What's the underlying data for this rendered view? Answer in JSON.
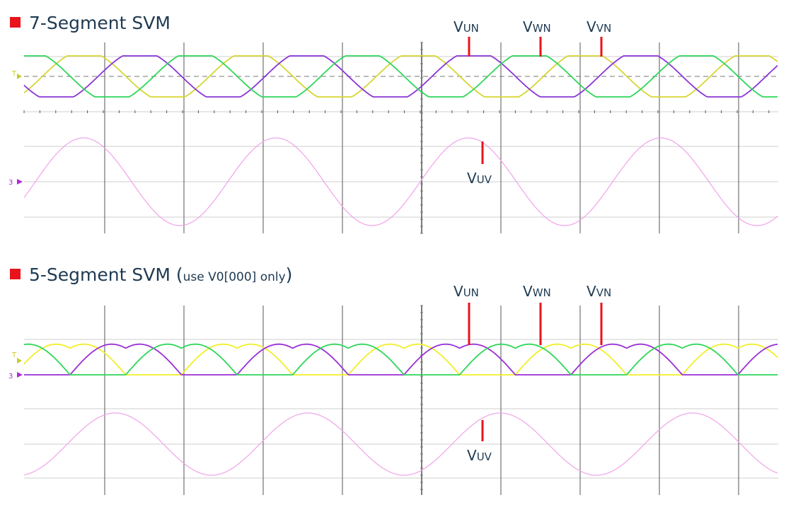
{
  "chart_data": [
    {
      "type": "line",
      "title": "7-Segment SVM",
      "note": "",
      "grid": true,
      "phase_plot": {
        "description_free": true,
        "x_range_cycles": [
          0,
          4.3
        ],
        "series": [
          {
            "name": "VUN",
            "color": "#d6d633",
            "waveform": "clamped-sine"
          },
          {
            "name": "VWN",
            "color": "#8a35d6",
            "waveform": "clamped-sine"
          },
          {
            "name": "VVN",
            "color": "#2fd65a",
            "waveform": "clamped-sine"
          }
        ]
      },
      "line_plot": {
        "series": [
          {
            "name": "VUV",
            "color": "#f0a3ea",
            "waveform": "sine",
            "cycles": 4
          }
        ]
      },
      "labels": [
        {
          "key": "VUN",
          "main": "V",
          "sub": "UN"
        },
        {
          "key": "VWN",
          "main": "V",
          "sub": "WN"
        },
        {
          "key": "VVN",
          "main": "V",
          "sub": "VN"
        },
        {
          "key": "VUV",
          "main": "V",
          "sub": "UV"
        }
      ],
      "markers": {
        "left_top": "T",
        "left_bottom": "3"
      }
    },
    {
      "type": "line",
      "title": "5-Segment SVM",
      "note_open": "(",
      "note": "use V0[000] only",
      "note_close": ")",
      "grid": true,
      "phase_plot": {
        "x_range_cycles": [
          0,
          4.3
        ],
        "series": [
          {
            "name": "VUN",
            "color": "#f2ee2a",
            "waveform": "discontinuous"
          },
          {
            "name": "VWN",
            "color": "#9b2fd6",
            "waveform": "discontinuous"
          },
          {
            "name": "VVN",
            "color": "#2fd65a",
            "waveform": "discontinuous"
          }
        ]
      },
      "line_plot": {
        "series": [
          {
            "name": "VUV",
            "color": "#f0a3ea",
            "waveform": "sine",
            "cycles": 4
          }
        ]
      },
      "labels": [
        {
          "key": "VUN",
          "main": "V",
          "sub": "UN"
        },
        {
          "key": "VWN",
          "main": "V",
          "sub": "WN"
        },
        {
          "key": "VVN",
          "main": "V",
          "sub": "VN"
        },
        {
          "key": "VUV",
          "main": "V",
          "sub": "UV"
        }
      ],
      "markers": {
        "left_top": "T",
        "left_bottom": "3"
      }
    }
  ],
  "colors": {
    "accent": "#e8131b",
    "text": "#1e3a52",
    "grid": "#555555",
    "gridLight": "#cfcfcf"
  }
}
